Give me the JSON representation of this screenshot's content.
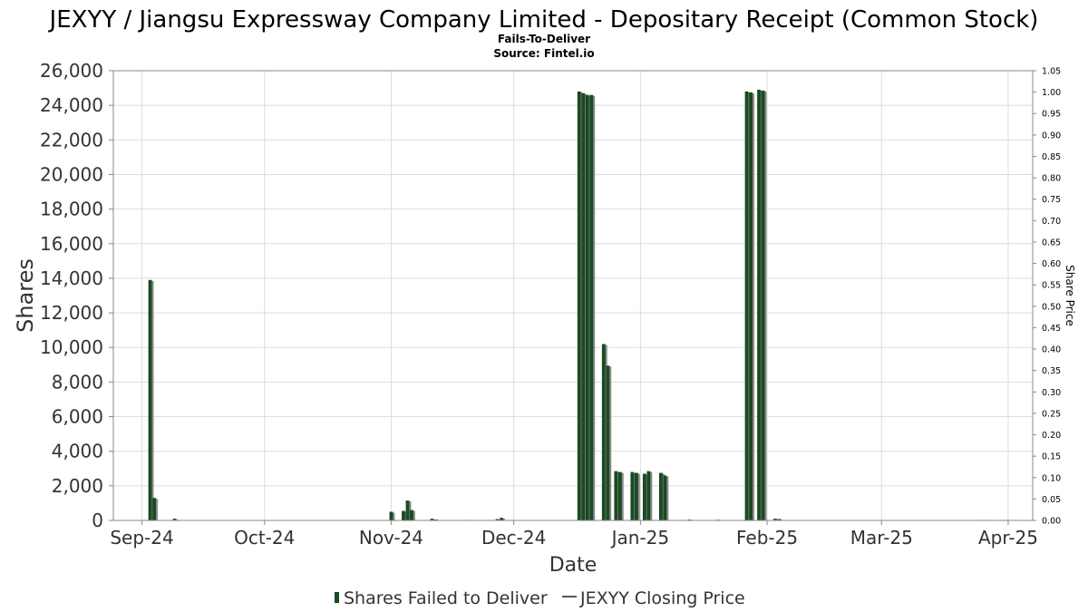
{
  "chart_data": {
    "type": "bar",
    "title": "JEXYY / Jiangsu Expressway Company Limited - Depositary Receipt (Common Stock)",
    "subtitle_1": "Fails-To-Deliver",
    "subtitle_2": "Source: Fintel.io",
    "xlabel": "Date",
    "ylabel": "Shares",
    "y2label": "Share Price",
    "ylim": [
      0,
      26000
    ],
    "y2lim": [
      0,
      1.05
    ],
    "xlim": [
      "2024-08-25",
      "2025-04-07"
    ],
    "grid": true,
    "x_ticks": [
      {
        "label": "Sep-24",
        "date": "2024-09-01"
      },
      {
        "label": "Oct-24",
        "date": "2024-10-01"
      },
      {
        "label": "Nov-24",
        "date": "2024-11-01"
      },
      {
        "label": "Dec-24",
        "date": "2024-12-01"
      },
      {
        "label": "Jan-25",
        "date": "2025-01-01"
      },
      {
        "label": "Feb-25",
        "date": "2025-02-01"
      },
      {
        "label": "Mar-25",
        "date": "2025-03-01"
      },
      {
        "label": "Apr-25",
        "date": "2025-04-01"
      }
    ],
    "y_ticks": [
      "0",
      "2,000",
      "4,000",
      "6,000",
      "8,000",
      "10,000",
      "12,000",
      "14,000",
      "16,000",
      "18,000",
      "20,000",
      "22,000",
      "24,000",
      "26,000"
    ],
    "y2_ticks": [
      "0.00",
      "0.05",
      "0.10",
      "0.15",
      "0.20",
      "0.25",
      "0.30",
      "0.35",
      "0.40",
      "0.45",
      "0.50",
      "0.55",
      "0.60",
      "0.65",
      "0.70",
      "0.75",
      "0.80",
      "0.85",
      "0.90",
      "0.95",
      "1.00",
      "1.05"
    ],
    "legend": {
      "placement": "bottom-center",
      "items": [
        {
          "label": "Shares Failed to Deliver",
          "kind": "bar",
          "color": "#1a4a22"
        },
        {
          "label": "JEXYY Closing Price",
          "kind": "line",
          "color": "#555555"
        }
      ]
    },
    "series": [
      {
        "name": "Shares Failed to Deliver",
        "color": "#1a4a22",
        "shadow_color": "#888888",
        "points": [
          {
            "date": "2024-09-03",
            "value": 13900
          },
          {
            "date": "2024-09-04",
            "value": 1300
          },
          {
            "date": "2024-09-09",
            "value": 100
          },
          {
            "date": "2024-11-01",
            "value": 500
          },
          {
            "date": "2024-11-04",
            "value": 550
          },
          {
            "date": "2024-11-05",
            "value": 1150
          },
          {
            "date": "2024-11-06",
            "value": 600
          },
          {
            "date": "2024-11-11",
            "value": 100
          },
          {
            "date": "2024-11-12",
            "value": 50
          },
          {
            "date": "2024-11-20",
            "value": 30
          },
          {
            "date": "2024-11-27",
            "value": 80
          },
          {
            "date": "2024-11-28",
            "value": 150
          },
          {
            "date": "2024-12-17",
            "value": 24800
          },
          {
            "date": "2024-12-18",
            "value": 24700
          },
          {
            "date": "2024-12-19",
            "value": 24600
          },
          {
            "date": "2024-12-20",
            "value": 24600
          },
          {
            "date": "2024-12-23",
            "value": 10200
          },
          {
            "date": "2024-12-24",
            "value": 8950
          },
          {
            "date": "2024-12-26",
            "value": 2850
          },
          {
            "date": "2024-12-27",
            "value": 2800
          },
          {
            "date": "2024-12-30",
            "value": 2800
          },
          {
            "date": "2024-12-31",
            "value": 2750
          },
          {
            "date": "2025-01-02",
            "value": 2700
          },
          {
            "date": "2025-01-03",
            "value": 2850
          },
          {
            "date": "2025-01-06",
            "value": 2750
          },
          {
            "date": "2025-01-07",
            "value": 2600
          },
          {
            "date": "2025-01-13",
            "value": 50
          },
          {
            "date": "2025-01-20",
            "value": 40
          },
          {
            "date": "2025-01-27",
            "value": 24800
          },
          {
            "date": "2025-01-28",
            "value": 24750
          },
          {
            "date": "2025-01-30",
            "value": 24900
          },
          {
            "date": "2025-01-31",
            "value": 24850
          },
          {
            "date": "2025-02-03",
            "value": 100
          },
          {
            "date": "2025-02-04",
            "value": 80
          },
          {
            "date": "2025-03-26",
            "value": 30
          },
          {
            "date": "2025-04-01",
            "value": 30
          }
        ]
      }
    ]
  }
}
